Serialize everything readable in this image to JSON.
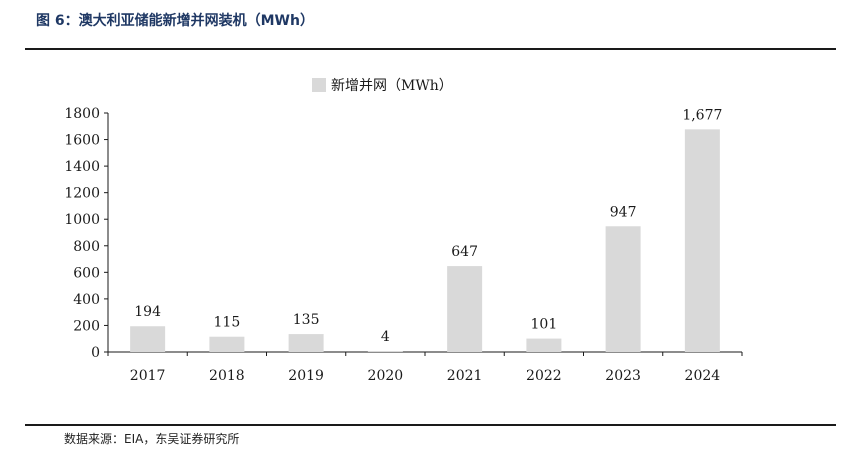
{
  "figure": {
    "title": "图 6：澳大利亚储能新增并网装机（MWh）",
    "source": "数据来源：EIA，东吴证券研究所"
  },
  "chart_data": {
    "type": "bar",
    "categories": [
      "2017",
      "2018",
      "2019",
      "2020",
      "2021",
      "2022",
      "2023",
      "2024"
    ],
    "series": [
      {
        "name": "新增并网（MWh）",
        "values": [
          194,
          115,
          135,
          4,
          647,
          101,
          947,
          1677
        ],
        "labels": [
          "194",
          "115",
          "135",
          "4",
          "647",
          "101",
          "947",
          "1,677"
        ]
      }
    ],
    "title": "",
    "xlabel": "",
    "ylabel": "",
    "ylim": [
      0,
      1800
    ],
    "yticks": [
      "0",
      "200",
      "400",
      "600",
      "800",
      "1000",
      "1200",
      "1400",
      "1600",
      "1800"
    ],
    "legend": "top-center",
    "grid": false,
    "colors": {
      "bar": "#d9d9d9",
      "axis": "#1a1a1a",
      "title": "#1f3864"
    }
  }
}
